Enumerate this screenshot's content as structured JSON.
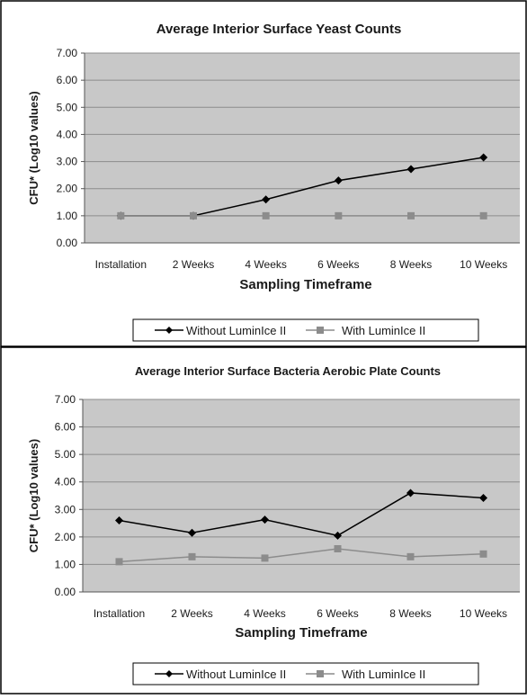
{
  "chart_data": [
    {
      "type": "line",
      "title": "Average Interior Surface Yeast Counts",
      "xlabel": "Sampling Timeframe",
      "ylabel": "CFU* (Log10 values)",
      "categories": [
        "Installation",
        "2 Weeks",
        "4 Weeks",
        "6 Weeks",
        "8 Weeks",
        "10 Weeks"
      ],
      "ylim": [
        0,
        7
      ],
      "yticks": [
        "0.00",
        "1.00",
        "2.00",
        "3.00",
        "4.00",
        "5.00",
        "6.00",
        "7.00"
      ],
      "grid": "horizontal",
      "legend": "bottom",
      "series": [
        {
          "name": "Without LuminIce II",
          "values": [
            1.0,
            1.0,
            1.6,
            2.3,
            2.72,
            3.15
          ],
          "color": "#000000",
          "marker": "diamond"
        },
        {
          "name": "With LuminIce II",
          "values": [
            1.0,
            1.0,
            1.0,
            1.0,
            1.0,
            1.0
          ],
          "color": "#8c8c8c",
          "marker": "square"
        }
      ]
    },
    {
      "type": "line",
      "title": "Average Interior Surface Bacteria Aerobic Plate Counts",
      "xlabel": "Sampling Timeframe",
      "ylabel": "CFU* (Log10 values)",
      "categories": [
        "Installation",
        "2 Weeks",
        "4 Weeks",
        "6 Weeks",
        "8 Weeks",
        "10 Weeks"
      ],
      "ylim": [
        0,
        7
      ],
      "yticks": [
        "0.00",
        "1.00",
        "2.00",
        "3.00",
        "4.00",
        "5.00",
        "6.00",
        "7.00"
      ],
      "grid": "horizontal",
      "legend": "bottom",
      "series": [
        {
          "name": "Without LuminIce II",
          "values": [
            2.6,
            2.15,
            2.63,
            2.05,
            3.6,
            3.42
          ],
          "color": "#000000",
          "marker": "diamond"
        },
        {
          "name": "With LuminIce II",
          "values": [
            1.1,
            1.28,
            1.23,
            1.57,
            1.28,
            1.38
          ],
          "color": "#8c8c8c",
          "marker": "square"
        }
      ]
    }
  ],
  "colors": {
    "plot_background": "#c8c8c8",
    "gridline": "#8c8c8c",
    "axis": "#555555",
    "border": "#000000"
  }
}
